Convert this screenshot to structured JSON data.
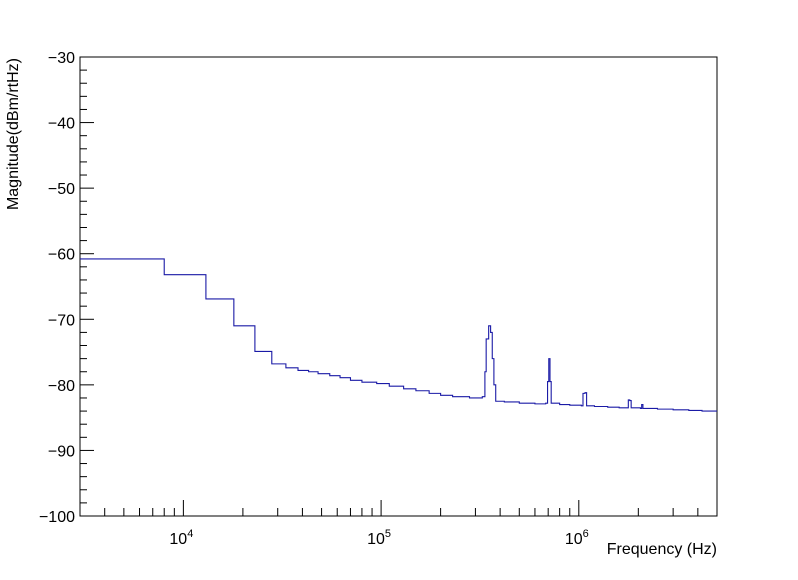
{
  "chart_data": {
    "type": "line",
    "xlabel": "Frequency (Hz)",
    "ylabel": "Magnitude(dBm/rtHz)",
    "x_scale": "log",
    "xlim": [
      3000,
      5000000
    ],
    "ylim": [
      -100,
      -30
    ],
    "x_major_ticks": [
      10000,
      100000,
      1000000
    ],
    "x_tick_labels": [
      {
        "base": "10",
        "exp": "4"
      },
      {
        "base": "10",
        "exp": "5"
      },
      {
        "base": "10",
        "exp": "6"
      }
    ],
    "y_ticks": [
      -100,
      -90,
      -80,
      -70,
      -60,
      -50,
      -40,
      -30
    ],
    "y_tick_labels": [
      "−100",
      "−90",
      "−80",
      "−70",
      "−60",
      "−50",
      "−40",
      "−30"
    ],
    "grid": false,
    "legend": "none",
    "line_color": "#1a1aa6",
    "series": [
      {
        "style": "step",
        "points": [
          [
            3000,
            -60.8
          ],
          [
            8000,
            -63.2
          ],
          [
            13000,
            -66.9
          ],
          [
            18000,
            -71.0
          ],
          [
            23000,
            -74.9
          ],
          [
            28000,
            -76.8
          ],
          [
            33000,
            -77.4
          ],
          [
            38000,
            -77.8
          ],
          [
            43000,
            -78.0
          ],
          [
            48000,
            -78.3
          ],
          [
            55000,
            -78.6
          ],
          [
            62000,
            -78.9
          ],
          [
            70000,
            -79.3
          ],
          [
            80000,
            -79.6
          ],
          [
            95000,
            -79.8
          ],
          [
            110000,
            -80.2
          ],
          [
            130000,
            -80.6
          ],
          [
            150000,
            -80.9
          ],
          [
            175000,
            -81.3
          ],
          [
            200000,
            -81.6
          ],
          [
            230000,
            -81.8
          ],
          [
            280000,
            -82.0
          ],
          [
            325000,
            -81.8
          ],
          [
            335000,
            -78.0
          ],
          [
            340000,
            -73.0
          ],
          [
            350000,
            -71.0
          ],
          [
            358000,
            -72.0
          ],
          [
            365000,
            -76.0
          ],
          [
            372000,
            -80.0
          ],
          [
            380000,
            -82.5
          ],
          [
            420000,
            -82.6
          ],
          [
            500000,
            -82.8
          ],
          [
            600000,
            -82.9
          ],
          [
            680000,
            -82.8
          ],
          [
            695000,
            -79.5
          ],
          [
            705000,
            -76.0
          ],
          [
            715000,
            -79.5
          ],
          [
            725000,
            -82.8
          ],
          [
            800000,
            -83.0
          ],
          [
            900000,
            -83.1
          ],
          [
            1030000,
            -83.2
          ],
          [
            1050000,
            -81.3
          ],
          [
            1075000,
            -81.2
          ],
          [
            1095000,
            -83.2
          ],
          [
            1200000,
            -83.3
          ],
          [
            1400000,
            -83.4
          ],
          [
            1600000,
            -83.5
          ],
          [
            1750000,
            -83.5
          ],
          [
            1780000,
            -82.3
          ],
          [
            1810000,
            -82.4
          ],
          [
            1840000,
            -83.5
          ],
          [
            2050000,
            -83.6
          ],
          [
            2080000,
            -83.0
          ],
          [
            2110000,
            -83.6
          ],
          [
            2500000,
            -83.7
          ],
          [
            3000000,
            -83.8
          ],
          [
            3600000,
            -83.9
          ],
          [
            4200000,
            -84.0
          ],
          [
            5000000,
            -84.0
          ]
        ]
      }
    ]
  }
}
